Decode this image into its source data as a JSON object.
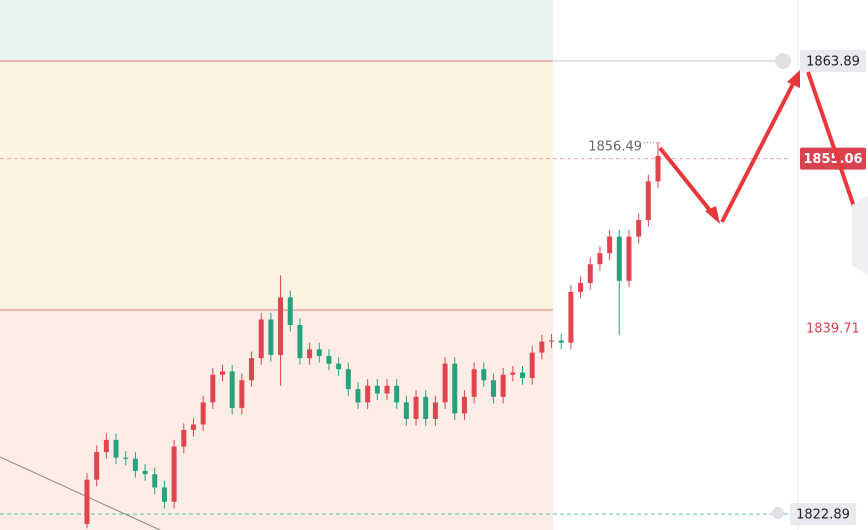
{
  "chart_data": {
    "type": "candlestick",
    "ylim": [
      1821.45,
      1869.41
    ],
    "up_color": "#e0454f",
    "down_color": "#26a17b",
    "open": [
      1822.0,
      1826.0,
      1828.5,
      1829.6,
      1828.0,
      1827.9,
      1826.8,
      1826.5,
      1825.3,
      1824.0,
      1829.0,
      1830.5,
      1831.0,
      1833.0,
      1835.5,
      1835.8,
      1832.5,
      1835.0,
      1837.0,
      1840.5,
      1837.3,
      1842.5,
      1840.0,
      1837.0,
      1837.8,
      1837.2,
      1836.5,
      1836.0,
      1834.2,
      1833.0,
      1834.5,
      1833.8,
      1834.5,
      1833.0,
      1831.5,
      1833.5,
      1831.5,
      1833.0,
      1836.5,
      1832.0,
      1833.5,
      1836.0,
      1835.0,
      1833.5,
      1835.5,
      1835.7,
      1835.2,
      1837.5,
      1838.5,
      1838.6,
      1838.4,
      1843.0,
      1843.8,
      1845.5,
      1846.5,
      1848.0,
      1844.0,
      1848.0,
      1849.5,
      1853.0
    ],
    "high": [
      1826.6,
      1829.1,
      1830.2,
      1830.2,
      1828.6,
      1828.5,
      1827.4,
      1827.1,
      1825.9,
      1829.6,
      1831.1,
      1831.6,
      1833.6,
      1836.1,
      1836.4,
      1836.4,
      1835.6,
      1837.6,
      1841.1,
      1841.1,
      1844.5,
      1843.1,
      1840.6,
      1838.4,
      1838.4,
      1837.8,
      1837.1,
      1836.6,
      1834.8,
      1835.1,
      1835.1,
      1835.1,
      1835.1,
      1833.6,
      1834.1,
      1834.1,
      1833.6,
      1837.1,
      1837.1,
      1834.1,
      1836.6,
      1836.6,
      1835.6,
      1836.1,
      1836.3,
      1836.3,
      1838.1,
      1839.1,
      1839.2,
      1839.2,
      1843.6,
      1844.4,
      1846.1,
      1847.1,
      1848.6,
      1848.6,
      1848.6,
      1850.1,
      1853.6,
      1856.49
    ],
    "low": [
      1821.6,
      1825.4,
      1827.9,
      1827.4,
      1827.3,
      1826.2,
      1825.9,
      1824.7,
      1823.4,
      1823.4,
      1828.4,
      1829.9,
      1830.4,
      1832.4,
      1834.9,
      1831.9,
      1831.9,
      1834.4,
      1836.4,
      1836.7,
      1834.5,
      1839.4,
      1836.4,
      1836.4,
      1836.6,
      1835.9,
      1835.4,
      1833.6,
      1832.4,
      1832.4,
      1833.2,
      1833.2,
      1832.4,
      1830.9,
      1830.9,
      1830.9,
      1830.9,
      1832.4,
      1831.4,
      1831.4,
      1832.9,
      1834.4,
      1832.9,
      1832.9,
      1834.9,
      1834.6,
      1834.6,
      1836.9,
      1837.9,
      1837.8,
      1837.8,
      1842.4,
      1843.2,
      1844.9,
      1845.9,
      1839.1,
      1843.4,
      1847.4,
      1848.9,
      1852.4
    ],
    "close": [
      1826.0,
      1828.5,
      1829.6,
      1828.0,
      1827.9,
      1826.8,
      1826.5,
      1825.3,
      1824.0,
      1829.0,
      1830.5,
      1831.0,
      1833.0,
      1835.5,
      1835.8,
      1832.5,
      1835.0,
      1837.0,
      1840.5,
      1837.3,
      1842.5,
      1840.0,
      1837.0,
      1837.8,
      1837.2,
      1836.5,
      1836.0,
      1834.2,
      1833.0,
      1834.5,
      1833.8,
      1834.5,
      1833.0,
      1831.5,
      1833.5,
      1831.5,
      1833.0,
      1836.5,
      1832.0,
      1833.5,
      1836.0,
      1835.0,
      1833.5,
      1835.5,
      1835.7,
      1835.2,
      1837.5,
      1838.5,
      1838.6,
      1838.4,
      1843.0,
      1843.8,
      1845.5,
      1846.5,
      1848.0,
      1844.0,
      1848.0,
      1849.5,
      1853.0,
      1855.3
    ],
    "zones": [
      {
        "from": 1863.89,
        "to": 1869.41,
        "color": "#e6f6ee"
      },
      {
        "from": 1841.36,
        "to": 1863.89,
        "color": "#fef3e2"
      },
      {
        "from": 1821.45,
        "to": 1841.36,
        "color": "#fdede6"
      }
    ],
    "zone_line_color": "#f0a0a0",
    "levels": [
      {
        "value": 1863.89,
        "line": "solid",
        "line_color": "#c8c8c8",
        "box": "#e8eaef",
        "text_color": "#222"
      },
      {
        "value": 1855.06,
        "line": "dashed",
        "line_color": "#eaa5ae",
        "box": "#d8434f",
        "text_color": "#fff"
      },
      {
        "value": 1839.71,
        "line": "none",
        "line_color": "none",
        "box": "none",
        "text_color": "#d8434f"
      },
      {
        "value": 1822.89,
        "line": "dashed",
        "line_color": "#5fc4ad",
        "box": "#e8eaef",
        "text_color": "#222"
      }
    ]
  }
}
